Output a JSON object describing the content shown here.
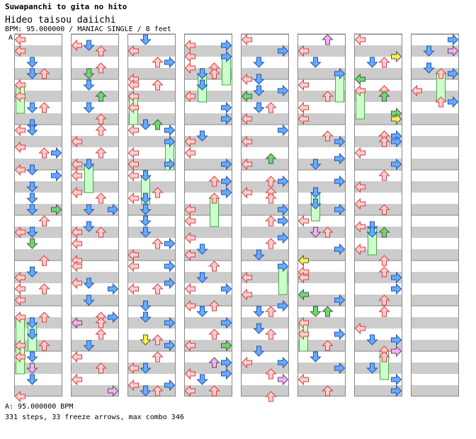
{
  "song": {
    "title": "Suwapanchi to gita no hito",
    "subtitle": "Hideo taisou daiichi",
    "bpm_line": "BPM: 95.000000 / MANIAC SINGLE / 8 feet",
    "section_label": "A"
  },
  "footer": {
    "bpm_legend": "A: 95.000000 BPM",
    "stats": "331 steps, 33 freeze arrows, max combo 346"
  },
  "colors": {
    "stripe": "#cccccc",
    "border": "#888888",
    "left_up": "#ffcccc",
    "left_up_stroke": "#cc4444",
    "down_right": "#66aaff",
    "down_right_stroke": "#2255aa",
    "green": "#66dd66",
    "freeze": "#ccffcc",
    "freeze_stroke": "#44aa44",
    "pink": "#ffaaff",
    "yellow": "#ffee44"
  },
  "icons": [
    "left-arrow-icon",
    "down-arrow-icon",
    "up-arrow-icon",
    "right-arrow-icon"
  ],
  "columns": 8,
  "measures_per_column": 8,
  "notes": [
    [
      [
        2,
        0,
        3
      ],
      [
        3,
        0,
        2
      ],
      [
        3,
        1,
        0
      ],
      [
        4,
        0,
        1
      ],
      [
        4,
        1,
        2
      ],
      [
        5,
        0,
        0
      ],
      [
        5,
        1,
        3
      ],
      [
        6,
        0,
        0
      ],
      [
        6,
        1,
        1
      ],
      [
        7,
        0,
        0
      ],
      [
        7,
        1,
        2
      ],
      [
        7,
        2,
        3
      ],
      [
        8,
        0,
        2
      ],
      [
        8,
        1,
        3
      ],
      [
        9,
        0,
        1
      ],
      [
        9,
        1,
        0
      ],
      [
        10,
        0,
        3
      ],
      [
        10,
        1,
        0
      ],
      [
        11,
        0,
        2
      ],
      [
        12,
        0,
        0
      ],
      [
        12,
        1,
        2
      ],
      [
        13,
        0,
        1
      ],
      [
        13,
        1,
        0
      ],
      [
        14,
        0,
        0
      ],
      [
        14,
        1,
        3
      ],
      [
        15,
        0,
        2
      ],
      [
        15,
        1,
        3
      ],
      [
        16,
        0,
        1
      ],
      [
        16,
        1,
        0
      ],
      [
        17,
        0,
        1
      ],
      [
        18,
        0,
        3
      ],
      [
        18,
        1,
        0
      ],
      [
        19,
        0,
        2
      ],
      [
        19,
        1,
        3
      ],
      [
        20,
        0,
        1
      ],
      [
        20,
        1,
        0
      ],
      [
        21,
        0,
        3
      ],
      [
        21,
        1,
        0
      ],
      [
        22,
        0,
        2
      ],
      [
        22,
        1,
        1
      ],
      [
        23,
        0,
        0
      ],
      [
        23,
        1,
        2
      ],
      [
        24,
        0,
        3
      ],
      [
        24,
        1,
        1
      ],
      [
        25,
        0,
        0
      ],
      [
        25,
        1,
        2
      ],
      [
        26,
        0,
        3
      ],
      [
        26,
        1,
        1
      ],
      [
        27,
        0,
        0
      ],
      [
        27,
        1,
        2
      ],
      [
        28,
        0,
        2
      ],
      [
        28,
        1,
        1
      ],
      [
        29,
        0,
        0
      ],
      [
        29,
        1,
        3
      ],
      [
        30,
        0,
        1
      ],
      [
        30,
        1,
        2
      ],
      [
        31,
        0,
        0
      ],
      [
        31,
        1,
        3
      ],
      [
        32,
        0,
        2
      ],
      [
        32,
        1,
        1
      ],
      [
        33,
        0,
        0
      ],
      [
        33,
        1,
        3
      ],
      [
        34,
        0,
        2
      ],
      [
        34,
        1,
        1
      ],
      [
        35,
        0,
        0
      ],
      [
        35,
        1,
        3
      ],
      [
        36,
        0,
        2
      ],
      [
        36,
        1,
        1
      ],
      [
        37,
        0,
        0
      ],
      [
        37,
        1,
        3
      ],
      [
        38,
        0,
        2
      ],
      [
        38,
        1,
        1
      ],
      [
        39,
        0,
        0
      ],
      [
        39,
        1,
        3
      ],
      [
        40,
        0,
        2
      ],
      [
        40,
        1,
        1
      ],
      [
        41,
        0,
        0
      ],
      [
        41,
        1,
        3
      ],
      [
        42,
        0,
        2
      ],
      [
        42,
        1,
        1
      ],
      [
        43,
        0,
        0
      ],
      [
        43,
        1,
        3
      ],
      [
        44,
        0,
        2
      ],
      [
        44,
        1,
        1
      ],
      [
        45,
        0,
        0
      ],
      [
        45,
        1,
        3
      ],
      [
        46,
        0,
        2
      ],
      [
        46,
        1,
        1
      ],
      [
        47,
        0,
        0
      ],
      [
        47,
        1,
        3
      ],
      [
        48,
        0,
        2
      ],
      [
        48,
        1,
        1
      ],
      [
        49,
        0,
        0
      ],
      [
        49,
        1,
        3
      ],
      [
        50,
        0,
        2
      ],
      [
        50,
        1,
        1
      ],
      [
        51,
        0,
        0
      ],
      [
        51,
        1,
        3
      ],
      [
        52,
        0,
        2
      ],
      [
        52,
        1,
        1
      ],
      [
        53,
        0,
        0
      ],
      [
        53,
        1,
        3
      ],
      [
        54,
        0,
        2
      ],
      [
        54,
        1,
        1
      ],
      [
        55,
        0,
        0
      ],
      [
        55,
        1,
        3
      ],
      [
        56,
        0,
        2
      ],
      [
        56,
        1,
        1
      ],
      [
        57,
        0,
        0
      ],
      [
        57,
        1,
        3
      ],
      [
        58,
        0,
        2
      ],
      [
        58,
        1,
        1
      ],
      [
        59,
        0,
        0
      ],
      [
        59,
        1,
        3
      ],
      [
        60,
        0,
        2
      ],
      [
        60,
        1,
        1
      ],
      [
        61,
        0,
        0
      ],
      [
        61,
        1,
        3
      ],
      [
        62,
        0,
        2
      ],
      [
        62,
        1,
        1
      ],
      [
        63,
        0,
        0
      ],
      [
        63,
        1,
        3
      ]
    ]
  ]
}
